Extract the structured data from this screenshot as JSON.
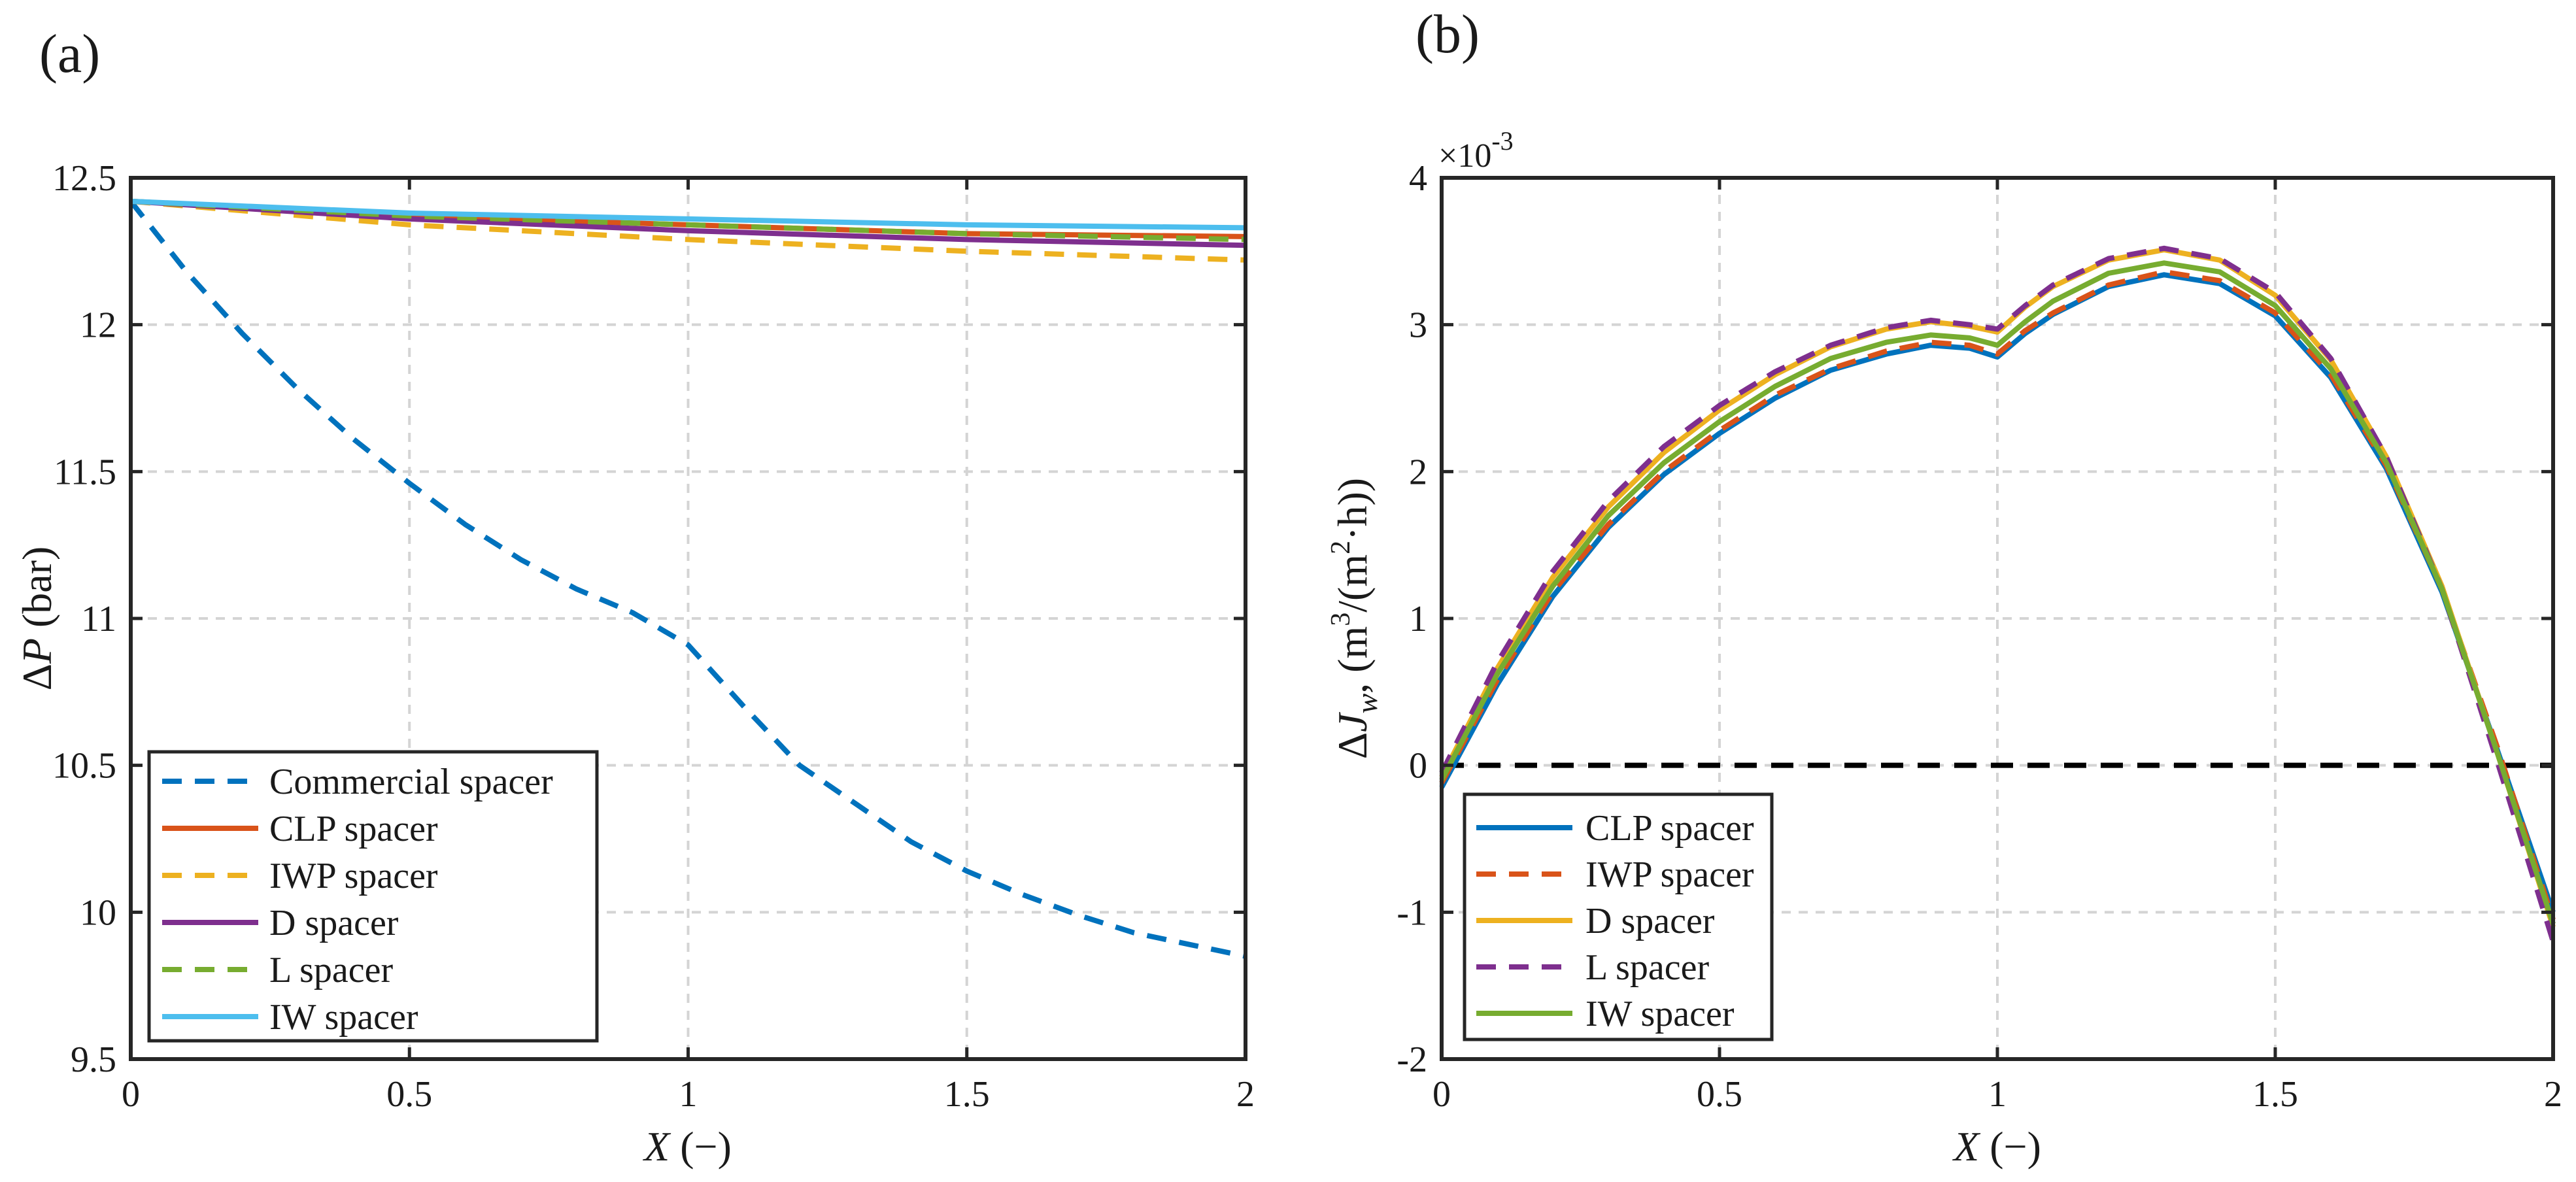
{
  "chart_data": [
    {
      "type": "line",
      "panel_label": "(a)",
      "xlabel": "X (−)",
      "xlabel_var": "X",
      "xlabel_unit": " (−)",
      "ylabel": "ΔP (bar)",
      "ylabel_delta": "Δ",
      "ylabel_var": "P",
      "ylabel_unit": " (bar)",
      "xlim": [
        0,
        2
      ],
      "ylim": [
        9.5,
        12.5
      ],
      "xticks": [
        0,
        0.5,
        1,
        1.5,
        2
      ],
      "xtick_labels": [
        "0",
        "0.5",
        "1",
        "1.5",
        "2"
      ],
      "yticks": [
        9.5,
        10,
        10.5,
        11,
        11.5,
        12,
        12.5
      ],
      "ytick_labels": [
        "9.5",
        "10",
        "10.5",
        "11",
        "11.5",
        "12",
        "12.5"
      ],
      "grid": true,
      "legend_position": "bottom-left",
      "series": [
        {
          "name": "Commercial spacer",
          "color": "#0072BD",
          "dash": "dashed",
          "x": [
            0,
            0.1,
            0.2,
            0.3,
            0.4,
            0.5,
            0.6,
            0.7,
            0.8,
            0.9,
            1.0,
            1.1,
            1.2,
            1.3,
            1.4,
            1.5,
            1.6,
            1.7,
            1.8,
            1.9,
            2.0
          ],
          "y": [
            12.42,
            12.18,
            11.97,
            11.78,
            11.61,
            11.46,
            11.32,
            11.2,
            11.1,
            11.02,
            10.91,
            10.7,
            10.5,
            10.37,
            10.24,
            10.14,
            10.06,
            9.99,
            9.93,
            9.89,
            9.85
          ]
        },
        {
          "name": "CLP spacer",
          "color": "#D95319",
          "dash": "solid",
          "x": [
            0,
            0.5,
            1.0,
            1.5,
            2.0
          ],
          "y": [
            12.42,
            12.37,
            12.34,
            12.31,
            12.3
          ]
        },
        {
          "name": "IWP spacer",
          "color": "#EDB120",
          "dash": "dashed",
          "x": [
            0,
            0.5,
            1.0,
            1.5,
            2.0
          ],
          "y": [
            12.42,
            12.34,
            12.29,
            12.25,
            12.22
          ]
        },
        {
          "name": "D spacer",
          "color": "#7E2F8E",
          "dash": "solid",
          "x": [
            0,
            0.5,
            1.0,
            1.5,
            2.0
          ],
          "y": [
            12.42,
            12.36,
            12.32,
            12.29,
            12.27
          ]
        },
        {
          "name": "L spacer",
          "color": "#77AC30",
          "dash": "dashed",
          "x": [
            0,
            0.5,
            1.0,
            1.5,
            2.0
          ],
          "y": [
            12.42,
            12.37,
            12.34,
            12.31,
            12.29
          ]
        },
        {
          "name": "IW spacer",
          "color": "#4DBEEE",
          "dash": "solid",
          "x": [
            0,
            0.5,
            1.0,
            1.5,
            2.0
          ],
          "y": [
            12.42,
            12.38,
            12.36,
            12.34,
            12.33
          ]
        }
      ]
    },
    {
      "type": "line",
      "panel_label": "(b)",
      "xlabel": "X (−)",
      "xlabel_var": "X",
      "xlabel_unit": " (−)",
      "ylabel": "ΔJ_w, (m^3/(m^2·h))",
      "ylabel_delta": "Δ",
      "ylabel_var": "J",
      "ylabel_sub": "w",
      "ylabel_unit_a": ", (m",
      "ylabel_sup1": "3",
      "ylabel_unit_b": "/(m",
      "ylabel_sup2": "2",
      "ylabel_unit_c": "·h))",
      "y_exponent_base": "×10",
      "y_exponent": "-3",
      "xlim": [
        0,
        2
      ],
      "ylim": [
        -2,
        4
      ],
      "xticks": [
        0,
        0.5,
        1,
        1.5,
        2
      ],
      "xtick_labels": [
        "0",
        "0.5",
        "1",
        "1.5",
        "2"
      ],
      "yticks": [
        -2,
        -1,
        0,
        1,
        2,
        3,
        4
      ],
      "ytick_labels": [
        "-2",
        "-1",
        "0",
        "1",
        "2",
        "3",
        "4"
      ],
      "grid": true,
      "zero_line": {
        "y": 0,
        "color": "#000000",
        "dash": "dashed"
      },
      "legend_position": "bottom-left",
      "series": [
        {
          "name": "CLP spacer",
          "color": "#0072BD",
          "dash": "solid",
          "x": [
            0,
            0.1,
            0.2,
            0.3,
            0.4,
            0.5,
            0.6,
            0.7,
            0.8,
            0.88,
            0.95,
            1.0,
            1.05,
            1.1,
            1.2,
            1.3,
            1.4,
            1.5,
            1.6,
            1.7,
            1.8,
            1.9,
            2.0
          ],
          "y": [
            -0.15,
            0.55,
            1.15,
            1.62,
            1.98,
            2.26,
            2.5,
            2.69,
            2.8,
            2.86,
            2.84,
            2.78,
            2.94,
            3.07,
            3.26,
            3.34,
            3.28,
            3.06,
            2.64,
            2.02,
            1.18,
            0.1,
            -1.0
          ]
        },
        {
          "name": "IWP spacer",
          "color": "#D95319",
          "dash": "dashed",
          "x": [
            0,
            0.1,
            0.2,
            0.3,
            0.4,
            0.5,
            0.6,
            0.7,
            0.8,
            0.88,
            0.95,
            1.0,
            1.05,
            1.1,
            1.2,
            1.3,
            1.4,
            1.5,
            1.6,
            1.7,
            1.8,
            1.9,
            2.0
          ],
          "y": [
            -0.12,
            0.58,
            1.18,
            1.64,
            2.0,
            2.28,
            2.52,
            2.7,
            2.82,
            2.88,
            2.86,
            2.8,
            2.96,
            3.08,
            3.27,
            3.36,
            3.3,
            3.08,
            2.66,
            2.04,
            1.2,
            0.12,
            -1.05
          ]
        },
        {
          "name": "D spacer",
          "color": "#EDB120",
          "dash": "solid",
          "x": [
            0,
            0.1,
            0.2,
            0.3,
            0.4,
            0.5,
            0.6,
            0.7,
            0.8,
            0.88,
            0.95,
            1.0,
            1.05,
            1.1,
            1.2,
            1.3,
            1.4,
            1.5,
            1.6,
            1.7,
            1.8,
            1.9,
            2.0
          ],
          "y": [
            -0.08,
            0.66,
            1.28,
            1.76,
            2.13,
            2.42,
            2.66,
            2.85,
            2.97,
            3.02,
            2.99,
            2.95,
            3.12,
            3.26,
            3.44,
            3.51,
            3.44,
            3.2,
            2.76,
            2.1,
            1.22,
            0.08,
            -1.1
          ]
        },
        {
          "name": "L spacer",
          "color": "#7E2F8E",
          "dash": "dashed",
          "x": [
            0,
            0.1,
            0.2,
            0.3,
            0.4,
            0.5,
            0.6,
            0.7,
            0.8,
            0.88,
            0.95,
            1.0,
            1.05,
            1.1,
            1.2,
            1.3,
            1.4,
            1.5,
            1.6,
            1.7,
            1.8,
            1.9,
            2.0
          ],
          "y": [
            -0.05,
            0.7,
            1.32,
            1.8,
            2.17,
            2.45,
            2.68,
            2.86,
            2.98,
            3.03,
            3.0,
            2.97,
            3.13,
            3.27,
            3.45,
            3.52,
            3.45,
            3.22,
            2.77,
            2.1,
            1.2,
            0.02,
            -1.2
          ]
        },
        {
          "name": "IW spacer",
          "color": "#77AC30",
          "dash": "solid",
          "x": [
            0,
            0.1,
            0.2,
            0.3,
            0.4,
            0.5,
            0.6,
            0.7,
            0.8,
            0.88,
            0.95,
            1.0,
            1.05,
            1.1,
            1.2,
            1.3,
            1.4,
            1.5,
            1.6,
            1.7,
            1.8,
            1.9,
            2.0
          ],
          "y": [
            -0.1,
            0.62,
            1.22,
            1.7,
            2.06,
            2.34,
            2.58,
            2.77,
            2.88,
            2.93,
            2.91,
            2.86,
            3.02,
            3.16,
            3.35,
            3.42,
            3.36,
            3.13,
            2.7,
            2.06,
            1.2,
            0.08,
            -1.08
          ]
        }
      ]
    }
  ]
}
